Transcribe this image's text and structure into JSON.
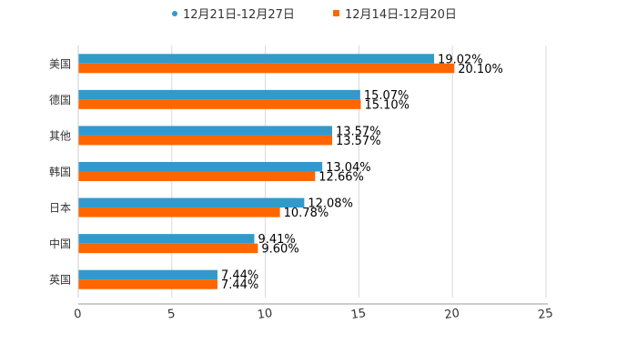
{
  "chart_data": {
    "type": "bar",
    "orientation": "horizontal",
    "categories": [
      "美国",
      "德国",
      "其他",
      "韩国",
      "日本",
      "中国",
      "英国"
    ],
    "series": [
      {
        "name": "12月21日-12月27日",
        "color": "#3399cc",
        "values": [
          19.02,
          15.07,
          13.57,
          13.04,
          12.08,
          9.41,
          7.44
        ],
        "labels": [
          "19.02%",
          "15.07%",
          "13.57%",
          "13.04%",
          "12.08%",
          "9.41%",
          "7.44%"
        ]
      },
      {
        "name": "12月14日-12月20日",
        "color": "#ff6600",
        "values": [
          20.1,
          15.1,
          13.57,
          12.66,
          10.78,
          9.6,
          7.44
        ],
        "labels": [
          "20.10%",
          "15.10%",
          "13.57%",
          "12.66%",
          "10.78%",
          "9.60%",
          "7.44%"
        ]
      }
    ],
    "xlim": [
      0,
      25
    ],
    "xticks": [
      0,
      5,
      10,
      15,
      20,
      25
    ],
    "grid": true,
    "legend_position": "top-center",
    "title": "",
    "xlabel": "",
    "ylabel": ""
  }
}
